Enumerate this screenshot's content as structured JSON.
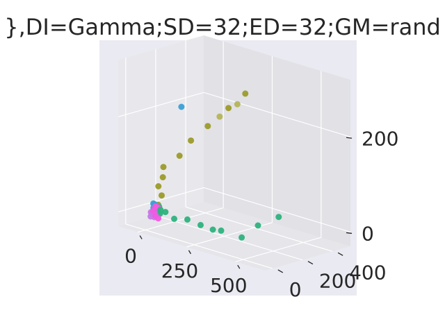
{
  "chart_data": {
    "type": "scatter",
    "projection": "3d",
    "title": "},DI=Gamma;SD=32;ED=32;GM=rand",
    "xlabel": "",
    "ylabel": "",
    "zlabel": "",
    "xticks": [
      "0",
      "250",
      "500"
    ],
    "yticks": [
      "0",
      "200",
      "400"
    ],
    "zticks": [
      "0",
      "200"
    ],
    "grid": true,
    "colors": {
      "panel": "#eaeaf2",
      "grid": "#ffffff",
      "text": "#262626"
    },
    "series": [
      {
        "color": "#c678e8",
        "points": [
          [
            20,
            10,
            0
          ],
          [
            30,
            20,
            5
          ],
          [
            25,
            5,
            10
          ],
          [
            35,
            15,
            0
          ],
          [
            15,
            25,
            5
          ],
          [
            40,
            10,
            8
          ],
          [
            28,
            28,
            3
          ]
        ]
      },
      {
        "color": "#f25ae0",
        "points": [
          [
            45,
            10,
            5
          ],
          [
            50,
            25,
            10
          ],
          [
            40,
            0,
            15
          ],
          [
            55,
            15,
            0
          ],
          [
            42,
            30,
            20
          ],
          [
            48,
            5,
            25
          ]
        ]
      },
      {
        "color": "#3ba0d6",
        "points": [
          [
            10,
            40,
            0
          ],
          [
            20,
            50,
            5
          ],
          [
            15,
            35,
            15
          ],
          [
            25,
            45,
            10
          ],
          [
            5,
            55,
            20
          ],
          [
            18,
            30,
            25
          ],
          [
            -30,
            280,
            200
          ]
        ]
      },
      {
        "color": "#2db27d",
        "points": [
          [
            60,
            20,
            10
          ],
          [
            80,
            30,
            15
          ],
          [
            140,
            10,
            10
          ],
          [
            200,
            20,
            15
          ],
          [
            260,
            30,
            10
          ],
          [
            330,
            20,
            10
          ],
          [
            380,
            10,
            15
          ],
          [
            470,
            30,
            10
          ],
          [
            530,
            60,
            40
          ],
          [
            590,
            120,
            60
          ],
          [
            40,
            40,
            20
          ],
          [
            70,
            10,
            20
          ]
        ]
      },
      {
        "color": "#9c9b29",
        "points": [
          [
            20,
            60,
            20
          ],
          [
            30,
            70,
            40
          ],
          [
            25,
            55,
            60
          ],
          [
            40,
            65,
            80
          ],
          [
            35,
            75,
            100
          ],
          [
            60,
            150,
            120
          ],
          [
            80,
            200,
            150
          ],
          [
            120,
            260,
            180
          ],
          [
            180,
            320,
            220
          ],
          [
            220,
            380,
            250
          ]
        ]
      },
      {
        "color": "#b5b45a",
        "points": [
          [
            150,
            300,
            200
          ],
          [
            210,
            340,
            230
          ]
        ]
      }
    ]
  }
}
